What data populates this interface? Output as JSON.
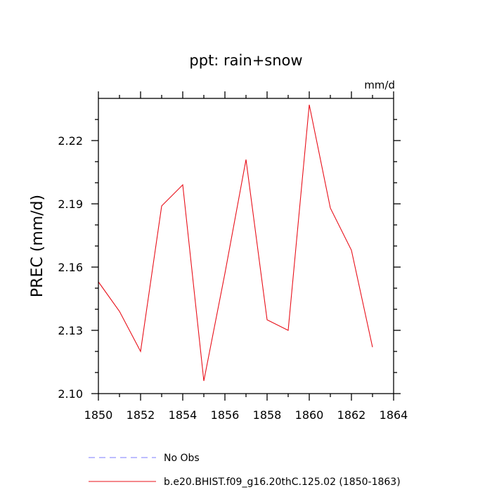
{
  "chart_data": {
    "type": "line",
    "title": "ppt: rain+snow",
    "units": "mm/d",
    "ylabel": "PREC  (mm/d)",
    "xlabel": "",
    "xlim": [
      1850,
      1864
    ],
    "ylim": [
      2.1,
      2.24
    ],
    "x_ticks": [
      "1850",
      "1852",
      "1854",
      "1856",
      "1858",
      "1860",
      "1862",
      "1864"
    ],
    "y_ticks": [
      "2.10",
      "2.13",
      "2.16",
      "2.19",
      "2.22"
    ],
    "x": [
      1850,
      1851,
      1852,
      1853,
      1854,
      1855,
      1856,
      1857,
      1858,
      1859,
      1860,
      1861,
      1862,
      1863
    ],
    "series": [
      {
        "name": "b.e20.BHIST.f09_g16.20thC.125.02 (1850-1863)",
        "color": "#e8101a",
        "style": "solid",
        "values": [
          2.153,
          2.139,
          2.12,
          2.189,
          2.199,
          2.106,
          2.157,
          2.211,
          2.135,
          2.13,
          2.237,
          2.188,
          2.168,
          2.122
        ]
      }
    ],
    "legend": [
      {
        "label": "No Obs",
        "color": "#7b7bff",
        "style": "dashed"
      },
      {
        "label": "b.e20.BHIST.f09_g16.20thC.125.02 (1850-1863)",
        "color": "#e8101a",
        "style": "solid"
      }
    ],
    "legend_position": "bottom",
    "grid": false
  }
}
